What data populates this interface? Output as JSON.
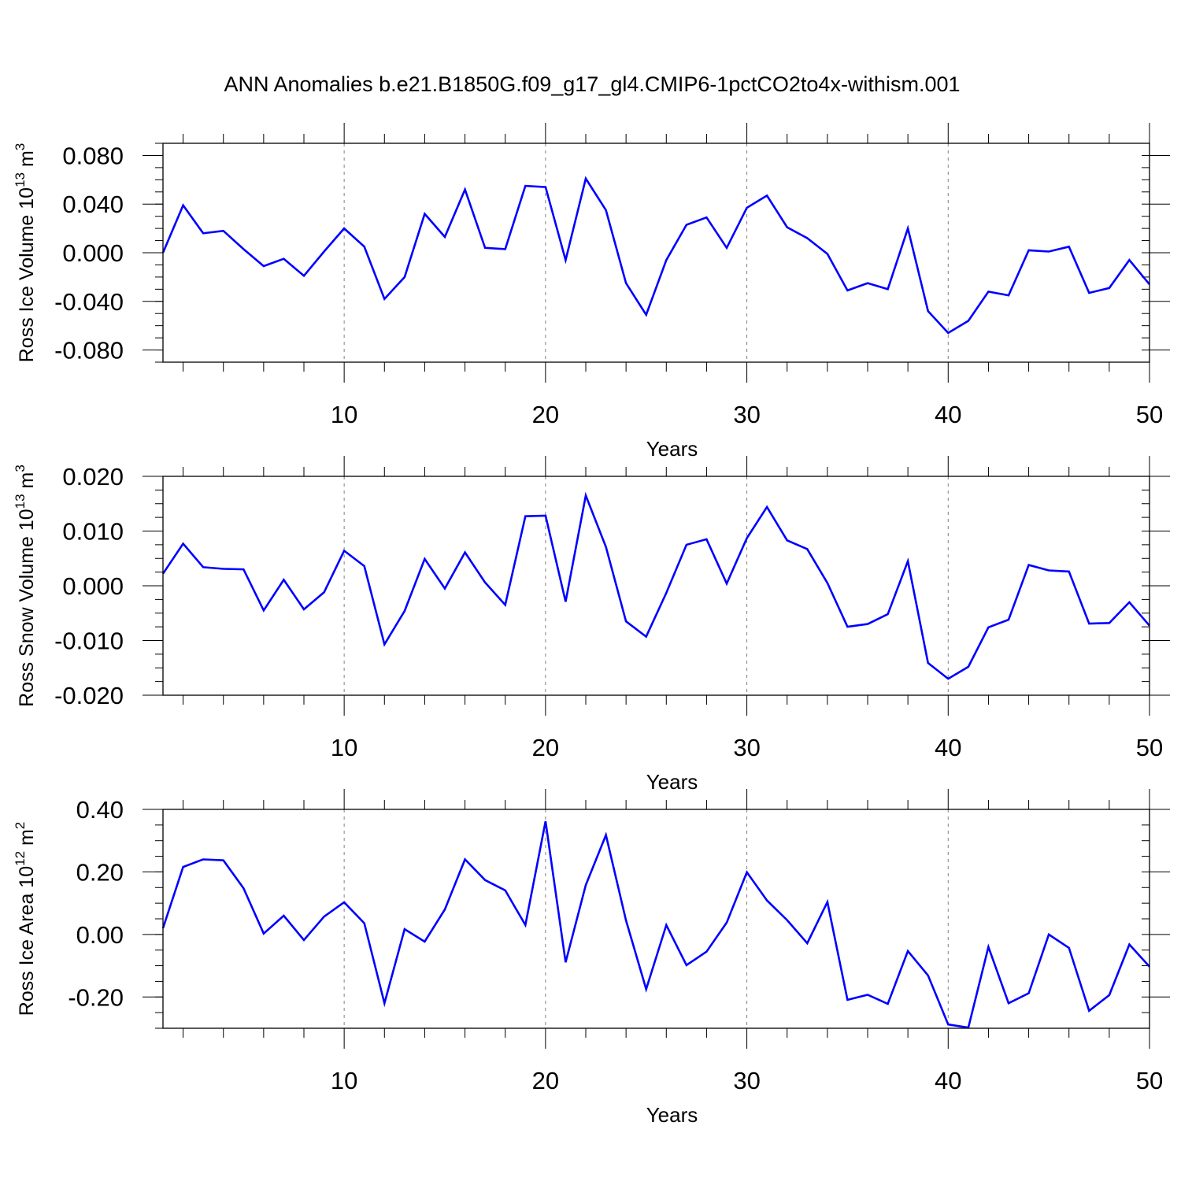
{
  "title": "ANN Anomalies b.e21.B1850G.f09_g17_gl4.CMIP6-1pctCO2to4x-withism.001",
  "colors": {
    "line": "#0000ff",
    "axis": "#000000",
    "grid": "#808080"
  },
  "chart_data": [
    {
      "type": "line",
      "ylabel_main": "Ross Ice Volume 10",
      "ylabel_exp": "13",
      "ylabel_unit": " m",
      "ylabel_unit_exp": "3",
      "xlabel": "Years",
      "xlim": [
        1,
        50
      ],
      "ylim": [
        -0.09,
        0.09
      ],
      "xticks": [
        10,
        20,
        30,
        40,
        50
      ],
      "yticks": [
        -0.08,
        -0.04,
        0.0,
        0.04,
        0.08
      ],
      "ytick_labels": [
        "-0.080",
        "-0.040",
        "0.000",
        "0.040",
        "0.080"
      ],
      "grid_x": [
        10,
        20,
        30,
        40
      ],
      "series": [
        {
          "x": [
            1,
            2,
            3,
            4,
            5,
            6,
            7,
            8,
            9,
            10,
            11,
            12,
            13,
            14,
            15,
            16,
            17,
            18,
            19,
            20,
            21,
            22,
            23,
            24,
            25,
            26,
            27,
            28,
            29,
            30,
            31,
            32,
            33,
            34,
            35,
            36,
            37,
            38,
            39,
            40,
            41,
            42,
            43,
            44,
            45,
            46,
            47,
            48,
            49,
            50
          ],
          "values": [
            0.0,
            0.039,
            0.016,
            0.018,
            0.003,
            -0.011,
            -0.005,
            -0.019,
            0.001,
            0.02,
            0.005,
            -0.038,
            -0.02,
            0.032,
            0.013,
            0.052,
            0.004,
            0.003,
            0.055,
            0.054,
            -0.006,
            0.061,
            0.035,
            -0.025,
            -0.051,
            -0.006,
            0.023,
            0.029,
            0.004,
            0.037,
            0.047,
            0.021,
            0.012,
            -0.001,
            -0.031,
            -0.025,
            -0.03,
            0.02,
            -0.048,
            -0.066,
            -0.056,
            -0.032,
            -0.035,
            0.002,
            0.001,
            0.005,
            -0.033,
            -0.029,
            -0.006,
            -0.026
          ]
        }
      ]
    },
    {
      "type": "line",
      "ylabel_main": "Ross Snow Volume 10",
      "ylabel_exp": "13",
      "ylabel_unit": " m",
      "ylabel_unit_exp": "3",
      "xlabel": "Years",
      "xlim": [
        1,
        50
      ],
      "ylim": [
        -0.02,
        0.02
      ],
      "xticks": [
        10,
        20,
        30,
        40,
        50
      ],
      "yticks": [
        -0.02,
        -0.01,
        0.0,
        0.01,
        0.02
      ],
      "ytick_labels": [
        "-0.020",
        "-0.010",
        "0.000",
        "0.010",
        "0.020"
      ],
      "grid_x": [
        10,
        20,
        30,
        40
      ],
      "series": [
        {
          "x": [
            1,
            2,
            3,
            4,
            5,
            6,
            7,
            8,
            9,
            10,
            11,
            12,
            13,
            14,
            15,
            16,
            17,
            18,
            19,
            20,
            21,
            22,
            23,
            24,
            25,
            26,
            27,
            28,
            29,
            30,
            31,
            32,
            33,
            34,
            35,
            36,
            37,
            38,
            39,
            40,
            41,
            42,
            43,
            44,
            45,
            46,
            47,
            48,
            49,
            50
          ],
          "values": [
            0.0022,
            0.0077,
            0.0034,
            0.0031,
            0.003,
            -0.0045,
            0.0011,
            -0.0043,
            -0.0012,
            0.0064,
            0.0036,
            -0.0107,
            -0.0046,
            0.0049,
            -0.0005,
            0.0061,
            0.0006,
            -0.0035,
            0.0127,
            0.0128,
            -0.0029,
            0.0165,
            0.0071,
            -0.0065,
            -0.0093,
            -0.0013,
            0.0075,
            0.0085,
            0.0004,
            0.0087,
            0.0144,
            0.0083,
            0.0067,
            0.0005,
            -0.0075,
            -0.007,
            -0.0052,
            0.0045,
            -0.0141,
            -0.017,
            -0.0148,
            -0.0076,
            -0.0062,
            0.0038,
            0.0028,
            0.0026,
            -0.0069,
            -0.0068,
            -0.003,
            -0.0073
          ]
        }
      ]
    },
    {
      "type": "line",
      "ylabel_main": "Ross Ice Area 10",
      "ylabel_exp": "12",
      "ylabel_unit": " m",
      "ylabel_unit_exp": "2",
      "xlabel": "Years",
      "xlim": [
        1,
        50
      ],
      "ylim": [
        -0.3,
        0.4
      ],
      "xticks": [
        10,
        20,
        30,
        40,
        50
      ],
      "yticks": [
        -0.2,
        0.0,
        0.2,
        0.4
      ],
      "ytick_labels": [
        "-0.20",
        "0.00",
        "0.20",
        "0.40"
      ],
      "grid_x": [
        10,
        20,
        30,
        40
      ],
      "series": [
        {
          "x": [
            1,
            2,
            3,
            4,
            5,
            6,
            7,
            8,
            9,
            10,
            11,
            12,
            13,
            14,
            15,
            16,
            17,
            18,
            19,
            20,
            21,
            22,
            23,
            24,
            25,
            26,
            27,
            28,
            29,
            30,
            31,
            32,
            33,
            34,
            35,
            36,
            37,
            38,
            39,
            40,
            41,
            42,
            43,
            44,
            45,
            46,
            47,
            48,
            49,
            50
          ],
          "values": [
            0.02,
            0.216,
            0.24,
            0.237,
            0.148,
            0.003,
            0.06,
            -0.018,
            0.057,
            0.103,
            0.036,
            -0.22,
            0.017,
            -0.023,
            0.08,
            0.24,
            0.174,
            0.141,
            0.03,
            0.362,
            -0.089,
            0.158,
            0.318,
            0.045,
            -0.175,
            0.03,
            -0.098,
            -0.055,
            0.038,
            0.199,
            0.109,
            0.046,
            -0.028,
            0.104,
            -0.209,
            -0.193,
            -0.222,
            -0.053,
            -0.131,
            -0.288,
            -0.298,
            -0.04,
            -0.22,
            -0.188,
            0.0,
            -0.043,
            -0.244,
            -0.194,
            -0.032,
            -0.103
          ]
        }
      ]
    }
  ]
}
